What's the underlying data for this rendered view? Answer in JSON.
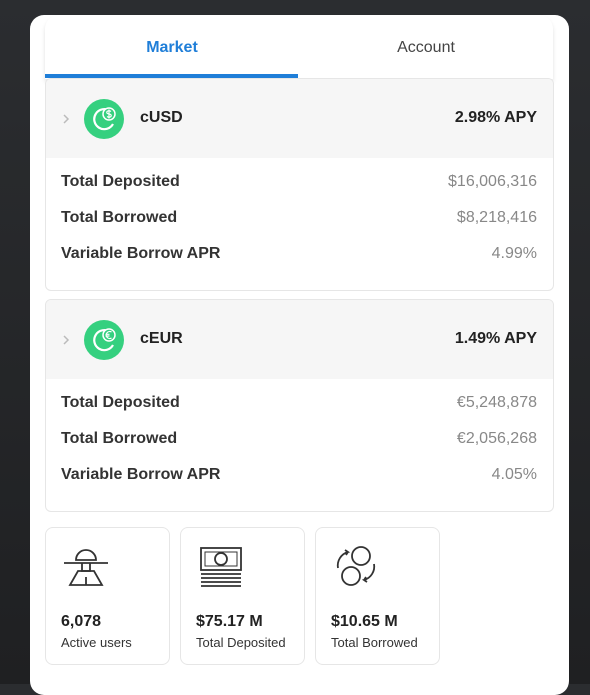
{
  "tabs": [
    "Market",
    "Account"
  ],
  "markets": [
    {
      "symbol": "cUSD",
      "apy": "2.98% APY",
      "rows": [
        {
          "label": "Total Deposited",
          "value": "$16,006,316"
        },
        {
          "label": "Total Borrowed",
          "value": "$8,218,416"
        },
        {
          "label": "Variable Borrow APR",
          "value": "4.99%"
        }
      ]
    },
    {
      "symbol": "cEUR",
      "apy": "1.49% APY",
      "rows": [
        {
          "label": "Total Deposited",
          "value": "€5,248,878"
        },
        {
          "label": "Total Borrowed",
          "value": "€2,056,268"
        },
        {
          "label": "Variable Borrow APR",
          "value": "4.05%"
        }
      ]
    }
  ],
  "stats": [
    {
      "value": "6,078",
      "label": "Active users"
    },
    {
      "value": "$75.17 M",
      "label": "Total Deposited"
    },
    {
      "value": "$10.65 M",
      "label": "Total Borrowed"
    }
  ]
}
